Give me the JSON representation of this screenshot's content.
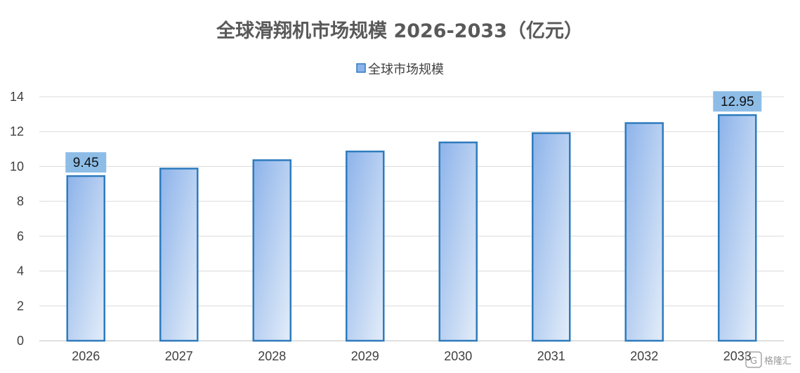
{
  "chart_data": {
    "type": "bar",
    "title": "全球滑翔机市场规模 2026-2033（亿元）",
    "xlabel": "",
    "ylabel": "",
    "categories": [
      "2026",
      "2027",
      "2028",
      "2029",
      "2030",
      "2031",
      "2032",
      "2033"
    ],
    "series": [
      {
        "name": "全球市场规模",
        "values": [
          9.45,
          9.88,
          10.36,
          10.86,
          11.38,
          11.91,
          12.49,
          12.95
        ]
      }
    ],
    "data_labels": [
      {
        "category": "2026",
        "text": "9.45"
      },
      {
        "category": "2033",
        "text": "12.95"
      }
    ],
    "ylim": [
      0,
      14
    ],
    "yticks": [
      "0",
      "2",
      "4",
      "6",
      "8",
      "10",
      "12",
      "14"
    ],
    "grid": true,
    "legend_position": "top-center",
    "colors": {
      "bar_fill_top": "#8db3ea",
      "bar_fill_bottom": "#e3edf9",
      "bar_stroke": "#2e7bbd",
      "label_box": "#8dbde7",
      "grid": "#d9d9d9",
      "axis": "#bfbfbf"
    }
  },
  "watermark": {
    "text": "格隆汇",
    "icon": "gelonghui-logo-icon"
  }
}
